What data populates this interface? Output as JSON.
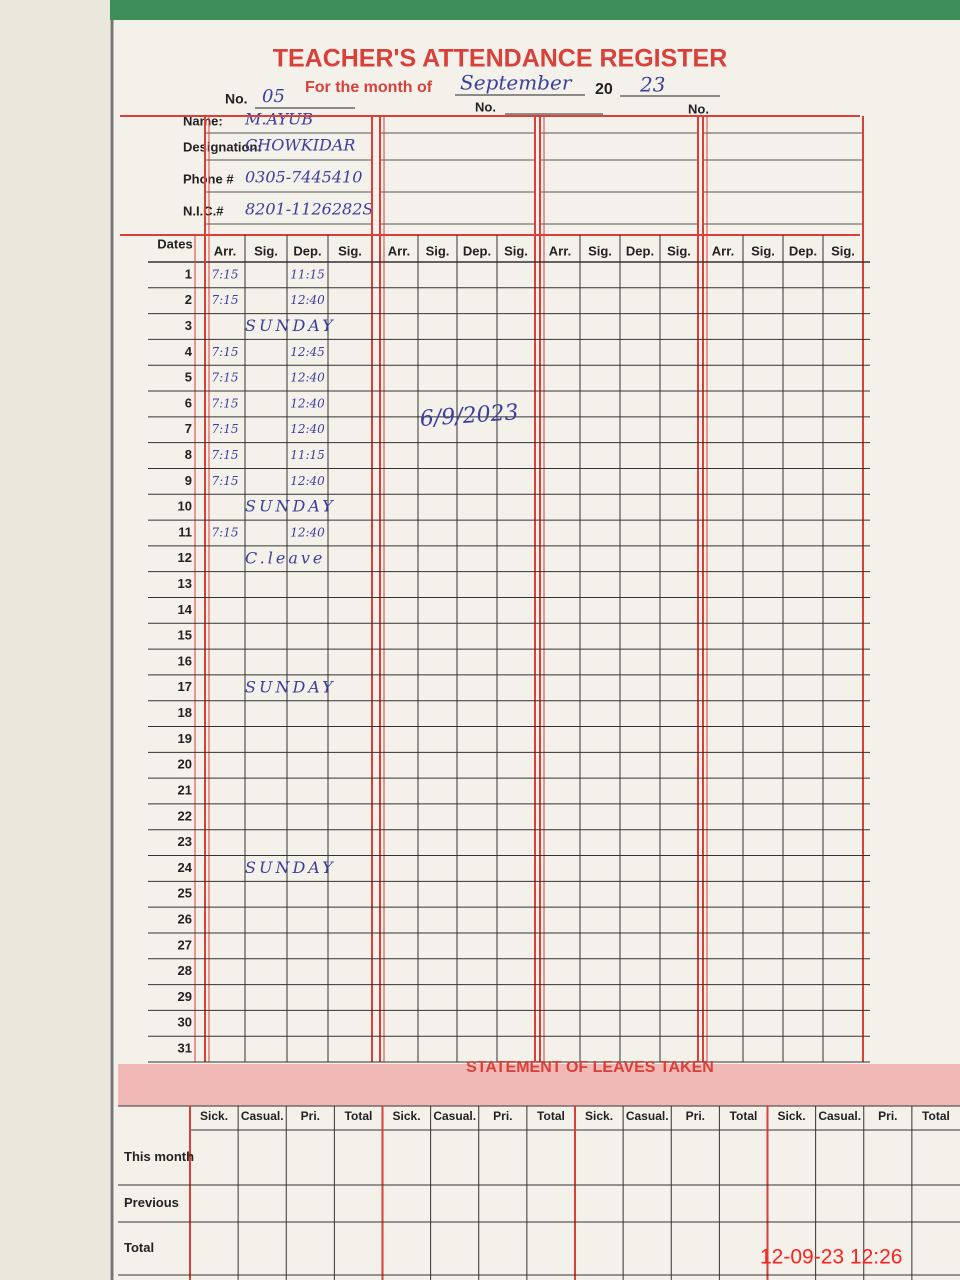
{
  "header": {
    "title": "TEACHER'S ATTENDANCE REGISTER",
    "no_label": "No.",
    "no": "05",
    "month_label": "For the month of",
    "month": "September",
    "year_prefix": "20",
    "year": "23"
  },
  "teacher_fields": {
    "labels": [
      "Name:",
      "Designation:",
      "Phone #",
      "N.I.C.#"
    ],
    "values": [
      "M.AYUB",
      "CHOWKIDAR",
      "0305-7445410",
      "8201-1126282S"
    ]
  },
  "table": {
    "dates_label": "Dates",
    "columns": [
      "Arr.",
      "Sig.",
      "Dep.",
      "Sig."
    ],
    "dates": [
      1,
      2,
      3,
      4,
      5,
      6,
      7,
      8,
      9,
      10,
      11,
      12,
      13,
      14,
      15,
      16,
      17,
      18,
      19,
      20,
      21,
      22,
      23,
      24,
      25,
      26,
      27,
      28,
      29,
      30,
      31
    ],
    "attendance": [
      {
        "date": 1,
        "arr": "7:15",
        "dep": "11:15"
      },
      {
        "date": 2,
        "arr": "7:15",
        "dep": "12:40"
      },
      {
        "date": 3,
        "note": "SUNDAY"
      },
      {
        "date": 4,
        "arr": "7:15",
        "dep": "12:45"
      },
      {
        "date": 5,
        "arr": "7:15",
        "dep": "12:40"
      },
      {
        "date": 6,
        "arr": "7:15",
        "dep": "12:40"
      },
      {
        "date": 7,
        "arr": "7:15",
        "dep": "12:40"
      },
      {
        "date": 8,
        "arr": "7:15",
        "dep": "11:15"
      },
      {
        "date": 9,
        "arr": "7:15",
        "dep": "12:40"
      },
      {
        "date": 10,
        "note": "SUNDAY"
      },
      {
        "date": 11,
        "arr": "7:15",
        "dep": "12:40"
      },
      {
        "date": 12,
        "note": "C.leave"
      },
      {
        "date": 17,
        "note": "SUNDAY"
      },
      {
        "date": 24,
        "note": "SUNDAY"
      }
    ],
    "check_note": "6/9/2023"
  },
  "leaves": {
    "title": "STATEMENT OF LEAVES TAKEN",
    "columns": [
      "Sick.",
      "Casual.",
      "Pri.",
      "Total"
    ],
    "rows": [
      "This month",
      "Previous",
      "Total"
    ]
  },
  "footer": {
    "timestamp": "12-09-23  12:26"
  }
}
